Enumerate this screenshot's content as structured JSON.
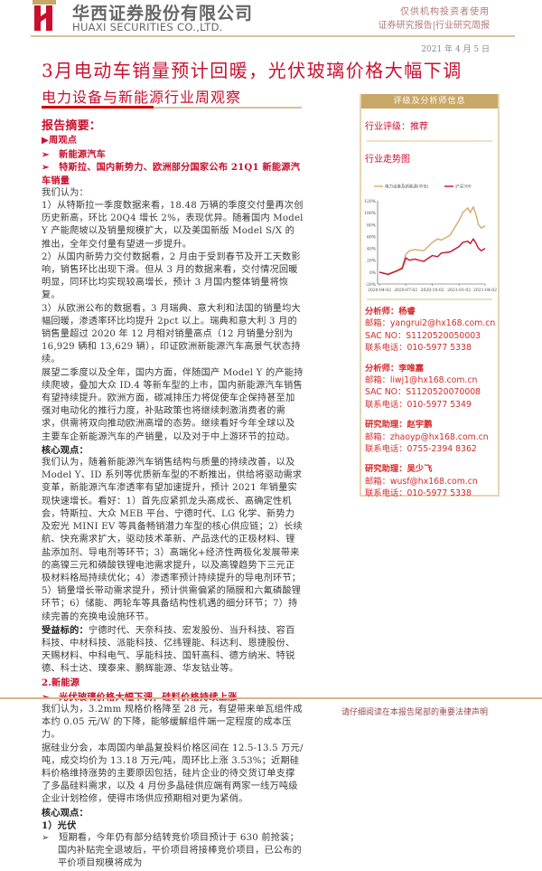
{
  "header": {
    "logo_cn": "华西证券股份有限公司",
    "logo_en": "HUAXI SECURITIES CO.,LTD.",
    "right1": "仅供机构投资者使用",
    "right2": "证券研究报告|行业研究周报",
    "date": "2021 年 4 月 5 日"
  },
  "title": "3月电动车销量预计回暖，光伏玻璃价格大幅下调",
  "subtitle": "电力设备与新能源行业周观察",
  "left": {
    "summary": "报告摘要：",
    "weekly": "▶周观点",
    "h1": "➢　新能源汽车",
    "h2": "➢　特斯拉、国内新势力、欧洲部分国家公布 21Q1 新能源汽车销量",
    "p0": "我们认为：",
    "p1": "1）从特斯拉一季度数据来看，18.48 万辆的季度交付量再次创历史新高，环比 20Q4 增长 2%，表现优异。随着国内 Model Y 产能爬坡以及销量规模扩大，以及美国新版 Model S/X 的推出，全年交付量有望进一步提升。",
    "p2": "2）从国内新势力交付数据看，2 月由于受到春节及开工天数影响，销售环比出现下滑。但从 3 月的数据来看，交付情况回暖明显，同环比均实现较高增长，预计 3 月国内整体销量将恢复。",
    "p3": "3）从欧洲公布的数据看，3 月瑞典、意大利和法国的销量均大幅回暖，渗透率环比均提升 2pct 以上。瑞典和意大利 3 月的销售量超过 2020 年 12 月相对销量高点（12 月销量分别为 16,929 辆和 13,629 辆），印证欧洲新能源汽车高景气状态持续。",
    "p4": "展望二季度以及全年，国内方面，伴随国产 Model Y 的产能持续爬坡，叠加大众 ID.4 等新车型的上市，国内新能源汽车销售有望持续提升。欧洲方面，碳减排压力将促使车企保持甚至加强对电动化的推行力度，补贴政策也将继续刺激消费者的需求，供需将双向推动欧洲高增的态势。继续看好今年全球以及主要车企新能源汽车的产销量，以及对于中上游环节的拉动。",
    "core1": "核心观点：",
    "p5": "我们认为，随着新能源汽车销售结构与质量的持续改善，以及 Model Y、ID 系列等优质新车型的不断推出，供给将驱动需求变革，新能源汽车渗透率有望加速提升，预计 2021 年销量实现快速增长。看好：1）首先应紧抓龙头高成长、高确定性机会，特斯拉、大众 MEB 平台、宁德时代、LG 化学、新势力及宏光 MINI EV 等具备畅销潜力车型的核心供应链；2）长续航、快充需求扩大，驱动技术革新、产品迭代的正极材料、锂盐添加剂、导电剂等环节；3）高端化+经济性两极化发展带来的高镍三元和磷酸铁锂电池需求提升，以及高镍趋势下三元正极材料格局持续优化；4）渗透率预计持续提升的导电剂环节；5）销量增长带动需求提升，预计供需偏紧的隔膜和六氟磷酸锂环节；6）储能、两轮车等具备结构性机遇的细分环节；7）持续完善的充换电设施环节。",
    "benef_label": "受益标的：",
    "benef": "宁德时代、天奈科技、宏发股份、当升科技、容百科技、中材科技、派能科技、亿纬锂能、科达利、恩捷股份、天赐材料、中科电气、孚能科技、国轩高科、德方纳米、特锐德、科士达、璞泰来、鹏辉能源、华友钴业等。",
    "sec2": "2.新能源",
    "h3": "➢　光伏玻璃价格大幅下调，硅料价格持续上涨",
    "p6": "我们认为，3.2mm 规格价格降至 28 元，有望带来单瓦组件成本约 0.05 元/W 的下降，能够缓解组件端一定程度的成本压力。",
    "p7": "据硅业分会，本周国内单晶复投料价格区间在 12.5-13.5 万元/吨，成交均价为 13.18 万元/吨，周环比上涨 3.53%；近期硅料价格维持涨势的主要原因包括，硅片企业的待交货订单支撑了多晶硅料需求，以及 4 月份多晶硅供应端有两家一线万吨级企业计划检修，使得市场供应预期相对更为紧俏。",
    "core2": "核心观点：",
    "pv": "1）光伏",
    "p8": "➢　短期看，今年仍有部分结转竞价项目预计于 630 前抢装；国内补贴完全退坡后，平价项目将接棒竞价项目，已公布的平价项目规模将成为"
  },
  "right": {
    "header": "评级及分析师信息",
    "rating": "行业评级：推荐",
    "trend": "行业走势图",
    "analysts": [
      {
        "role": "分析师：杨睿",
        "email": "邮箱：yangrui2@hx168.com.cn",
        "sac": "SAC NO：S1120520050003",
        "tel": "联系电话：010-5977 5338"
      },
      {
        "role": "分析师：李唯嘉",
        "email": "邮箱：liwj1@hx168.com.cn",
        "sac": "SAC NO：S1120520070008",
        "tel": "联系电话：010-5977 5349"
      },
      {
        "role": "研究助理：赵宇鹏",
        "email": "邮箱：zhaoyp@hx168.com.cn",
        "tel": "联系电话：0755-2394 8362"
      },
      {
        "role": "研究助理：吴少飞",
        "email": "邮箱：wusf@hx168.com.cn",
        "tel": "联系电话：010-5977 5338"
      }
    ]
  },
  "chart_data": {
    "type": "line",
    "ylim": [
      -20,
      120
    ],
    "yticks": [
      "120%",
      "100%",
      "80%",
      "60%",
      "40%",
      "20%",
      "0%",
      "-20%"
    ],
    "xticks": [
      "2020-04-02",
      "2020-07-02",
      "2020-10-02",
      "2021-01-02",
      "2021-04-02"
    ],
    "colors": {
      "sector": "#d4aa6a",
      "hs300": "#c8102e"
    },
    "series": [
      {
        "name": "电力设备及新能源(中信)",
        "x": [
          "2020-04-02",
          "2020-05-02",
          "2020-06-02",
          "2020-06-20",
          "2020-07-02",
          "2020-07-15",
          "2020-08-02",
          "2020-09-02",
          "2020-10-02",
          "2020-10-20",
          "2020-11-02",
          "2020-12-02",
          "2021-01-02",
          "2021-01-15",
          "2021-02-01",
          "2021-02-10",
          "2021-02-20",
          "2021-03-02",
          "2021-03-10",
          "2021-03-20",
          "2021-04-02"
        ],
        "values": [
          0,
          -3,
          3,
          8,
          30,
          36,
          38,
          36,
          50,
          56,
          54,
          62,
          87,
          100,
          108,
          100,
          110,
          96,
          80,
          74,
          78
        ]
      },
      {
        "name": "沪深300",
        "x": [
          "2020-04-02",
          "2020-05-02",
          "2020-06-02",
          "2020-06-20",
          "2020-07-02",
          "2020-07-15",
          "2020-08-02",
          "2020-09-02",
          "2020-10-02",
          "2020-10-20",
          "2020-11-02",
          "2020-12-02",
          "2021-01-02",
          "2021-01-15",
          "2021-02-01",
          "2021-02-10",
          "2021-02-20",
          "2021-03-02",
          "2021-03-10",
          "2021-03-20",
          "2021-04-02"
        ],
        "values": [
          0,
          -4,
          2,
          6,
          24,
          20,
          22,
          18,
          28,
          26,
          32,
          34,
          43,
          50,
          52,
          48,
          56,
          48,
          40,
          36,
          40
        ]
      }
    ]
  },
  "footer": "请仔细阅读在本报告尾部的重要法律声明"
}
